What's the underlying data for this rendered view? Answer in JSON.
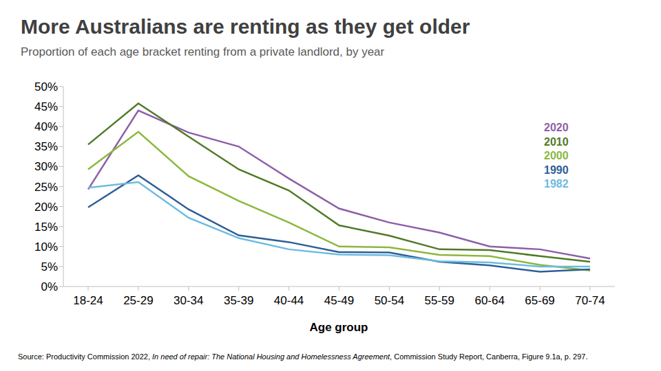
{
  "chart_data": {
    "type": "line",
    "title": "More Australians are renting as they get older",
    "subtitle": "Proportion of each age bracket renting from a private landlord, by year",
    "x_label": "Age group",
    "source": [
      "Source: Productivity Commission 2022, ",
      "In need of repair: The National Housing and Homelessness Agreement",
      ", Commission Study Report, Canberra, Figure 9.1a, p. 297."
    ],
    "categories": [
      "18-24",
      "25-29",
      "30-34",
      "35-39",
      "40-44",
      "45-49",
      "50-54",
      "55-59",
      "60-64",
      "65-69",
      "70-74"
    ],
    "series": [
      {
        "name": "2020",
        "color": "#8e5ea8",
        "values": [
          24.3,
          44.0,
          38.5,
          35.0,
          27.0,
          19.5,
          16.0,
          13.5,
          10.0,
          9.3,
          7.0
        ]
      },
      {
        "name": "2010",
        "color": "#4f7a28",
        "values": [
          35.5,
          45.8,
          37.5,
          29.3,
          24.0,
          15.3,
          12.7,
          9.3,
          9.1,
          7.6,
          6.2
        ]
      },
      {
        "name": "2000",
        "color": "#8ab83c",
        "values": [
          29.3,
          38.7,
          27.6,
          21.4,
          16.0,
          10.0,
          9.8,
          7.9,
          7.6,
          5.4,
          4.0
        ]
      },
      {
        "name": "1990",
        "color": "#2e5e95",
        "values": [
          19.8,
          27.8,
          19.3,
          12.8,
          11.1,
          8.6,
          8.5,
          6.2,
          5.3,
          3.7,
          4.3
        ]
      },
      {
        "name": "1982",
        "color": "#6dbbe0",
        "values": [
          24.7,
          26.1,
          17.2,
          12.1,
          9.3,
          8.0,
          7.8,
          6.3,
          6.0,
          5.0,
          5.0
        ]
      }
    ],
    "ylim": [
      0,
      50
    ],
    "yticks": [
      {
        "value": 0,
        "label": "0%"
      },
      {
        "value": 5,
        "label": "5%"
      },
      {
        "value": 10,
        "label": "10%"
      },
      {
        "value": 15,
        "label": "15%"
      },
      {
        "value": 20,
        "label": "20%"
      },
      {
        "value": 25,
        "label": "25%"
      },
      {
        "value": 30,
        "label": "30%"
      },
      {
        "value": 35,
        "label": "35%"
      },
      {
        "value": 40,
        "label": "40%"
      },
      {
        "value": 45,
        "label": "45%"
      },
      {
        "value": 50,
        "label": "50%"
      }
    ],
    "grid": false,
    "legend": "right",
    "marker": "none"
  }
}
